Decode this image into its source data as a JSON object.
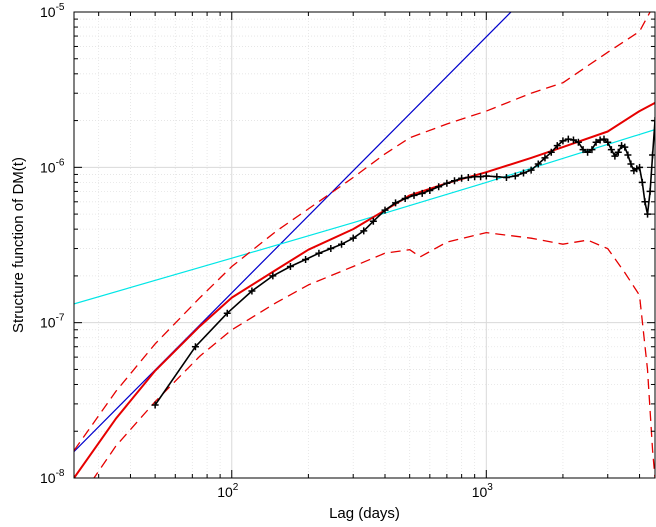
{
  "chart_data": {
    "type": "line",
    "title": "",
    "xlabel": "Lag (days)",
    "ylabel": "Structure function of DM(t)",
    "x_scale": "log",
    "y_scale": "log",
    "xlim": [
      24,
      4600
    ],
    "ylim": [
      1e-08,
      1e-05
    ],
    "grid": true,
    "minor_grid": true,
    "legend": "none",
    "x_ticks": [
      {
        "value": 100,
        "base": "10",
        "exp": "2"
      },
      {
        "value": 1000,
        "base": "10",
        "exp": "3"
      }
    ],
    "y_ticks": [
      {
        "value": 1e-08,
        "base": "10",
        "exp": "-8"
      },
      {
        "value": 1e-07,
        "base": "10",
        "exp": "-7"
      },
      {
        "value": 1e-06,
        "base": "10",
        "exp": "-6"
      },
      {
        "value": 1e-05,
        "base": "10",
        "exp": "-5"
      }
    ],
    "series": [
      {
        "color": "#0000cc",
        "style": "solid",
        "marker": "none",
        "x": [
          24,
          1250
        ],
        "y": [
          1.48e-08,
          1e-05
        ]
      },
      {
        "color": "#00e6e6",
        "style": "solid",
        "marker": "none",
        "x": [
          24,
          100,
          300,
          1000,
          4600
        ],
        "y": [
          1.32e-07,
          2.6e-07,
          4.4e-07,
          8e-07,
          1.75e-06
        ]
      },
      {
        "color": "#e60000",
        "style": "solid",
        "marker": "none",
        "x": [
          24,
          35,
          50,
          75,
          100,
          150,
          200,
          300,
          400,
          500,
          700,
          1000,
          1500,
          2000,
          3000,
          4000,
          4600
        ],
        "y": [
          1e-08,
          2.4e-08,
          4.9e-08,
          9.5e-08,
          1.45e-07,
          2.2e-07,
          2.95e-07,
          4e-07,
          5.3e-07,
          6.6e-07,
          7.9e-07,
          9.3e-07,
          1.15e-06,
          1.35e-06,
          1.7e-06,
          2.3e-06,
          2.6e-06
        ]
      },
      {
        "color": "#e60000",
        "style": "dashed",
        "marker": "none",
        "x": [
          24,
          35,
          50,
          75,
          100,
          150,
          200,
          300,
          400,
          500,
          700,
          1000,
          1500,
          2000,
          2500,
          3000,
          3500,
          4000,
          4400
        ],
        "y": [
          1.5e-08,
          3.6e-08,
          7.3e-08,
          1.45e-07,
          2.3e-07,
          3.9e-07,
          5.4e-07,
          8.6e-07,
          1.22e-06,
          1.55e-06,
          1.9e-06,
          2.3e-06,
          3e-06,
          3.5e-06,
          4.5e-06,
          5.5e-06,
          6.5e-06,
          7.5e-06,
          1e-05
        ]
      },
      {
        "color": "#e60000",
        "style": "dashed",
        "marker": "none",
        "x": [
          24,
          35,
          50,
          75,
          100,
          150,
          200,
          300,
          400,
          500,
          550,
          700,
          1000,
          1500,
          2000,
          2500,
          3000,
          3500,
          4000,
          4300,
          4500,
          4600
        ],
        "y": [
          6.5e-09,
          1.6e-08,
          3.1e-08,
          6.1e-08,
          9e-08,
          1.35e-07,
          1.75e-07,
          2.3e-07,
          2.8e-07,
          2.95e-07,
          2.65e-07,
          3.3e-07,
          3.8e-07,
          3.5e-07,
          3.2e-07,
          3.4e-07,
          3e-07,
          2.1e-07,
          1.5e-07,
          5e-08,
          1.5e-08,
          1e-08
        ]
      },
      {
        "color": "#000000",
        "style": "solid",
        "marker": "plus",
        "x": [
          50,
          72,
          96,
          120,
          145,
          170,
          195,
          220,
          245,
          270,
          300,
          330,
          360,
          400,
          440,
          480,
          520,
          560,
          600,
          650,
          700,
          750,
          800,
          850,
          900,
          950,
          1000,
          1100,
          1200,
          1300,
          1400,
          1500,
          1600,
          1700,
          1800,
          1900,
          2000,
          2100,
          2200,
          2300,
          2400,
          2500,
          2600,
          2700,
          2800,
          2900,
          3000,
          3100,
          3200,
          3300,
          3400,
          3500,
          3600,
          3700,
          3800,
          3900,
          4000,
          4100,
          4200,
          4300,
          4400,
          4500,
          4600
        ],
        "y": [
          2.95e-08,
          7e-08,
          1.15e-07,
          1.6e-07,
          2e-07,
          2.3e-07,
          2.55e-07,
          2.8e-07,
          3e-07,
          3.2e-07,
          3.5e-07,
          3.9e-07,
          4.5e-07,
          5.3e-07,
          5.9e-07,
          6.3e-07,
          6.6e-07,
          6.8e-07,
          7.1e-07,
          7.5e-07,
          7.9e-07,
          8.2e-07,
          8.5e-07,
          8.6e-07,
          8.7e-07,
          8.7e-07,
          8.8e-07,
          8.7e-07,
          8.6e-07,
          8.8e-07,
          9.2e-07,
          9.6e-07,
          1.05e-06,
          1.15e-06,
          1.25e-06,
          1.38e-06,
          1.48e-06,
          1.52e-06,
          1.5e-06,
          1.45e-06,
          1.3e-06,
          1.25e-06,
          1.3e-06,
          1.45e-06,
          1.5e-06,
          1.52e-06,
          1.45e-06,
          1.3e-06,
          1.18e-06,
          1.25e-06,
          1.38e-06,
          1.35e-06,
          1.2e-06,
          1.05e-06,
          9.5e-07,
          9.8e-07,
          1e-06,
          8e-07,
          6e-07,
          5e-07,
          7e-07,
          1.2e-06,
          2e-06
        ]
      }
    ]
  }
}
